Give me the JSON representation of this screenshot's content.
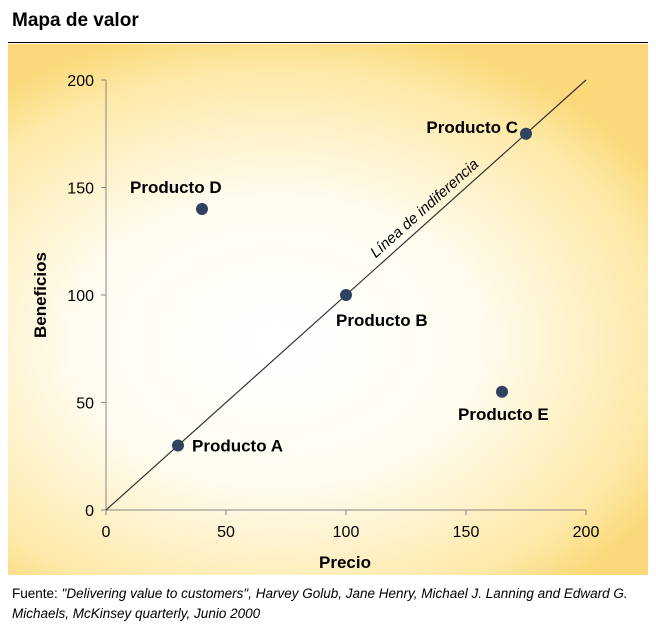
{
  "header": {
    "title": "Mapa de valor"
  },
  "chart_data": {
    "type": "scatter",
    "title": "",
    "xlabel": "Precio",
    "ylabel": "Beneficios",
    "xlim": [
      0,
      200
    ],
    "ylim": [
      0,
      200
    ],
    "xticks": [
      0,
      50,
      100,
      150,
      200
    ],
    "yticks": [
      0,
      50,
      100,
      150,
      200
    ],
    "grid": false,
    "points": [
      {
        "label": "Producto A",
        "x": 30,
        "y": 30
      },
      {
        "label": "Producto B",
        "x": 100,
        "y": 100
      },
      {
        "label": "Producto C",
        "x": 175,
        "y": 175
      },
      {
        "label": "Producto D",
        "x": 40,
        "y": 140
      },
      {
        "label": "Producto E",
        "x": 165,
        "y": 55
      }
    ],
    "reference_line": {
      "label": "Línea de indiferencia",
      "from": [
        0,
        0
      ],
      "to": [
        200,
        200
      ]
    },
    "colors": {
      "marker": "#2f4260",
      "axis": "#888888",
      "line": "#333333"
    }
  },
  "footer": {
    "source_prefix": "Fuente: ",
    "source_text": "\"Delivering value to customers\", Harvey Golub, Jane Henry, Michael J. Lanning and Edward G. Michaels, McKinsey quarterly, Junio 2000"
  }
}
